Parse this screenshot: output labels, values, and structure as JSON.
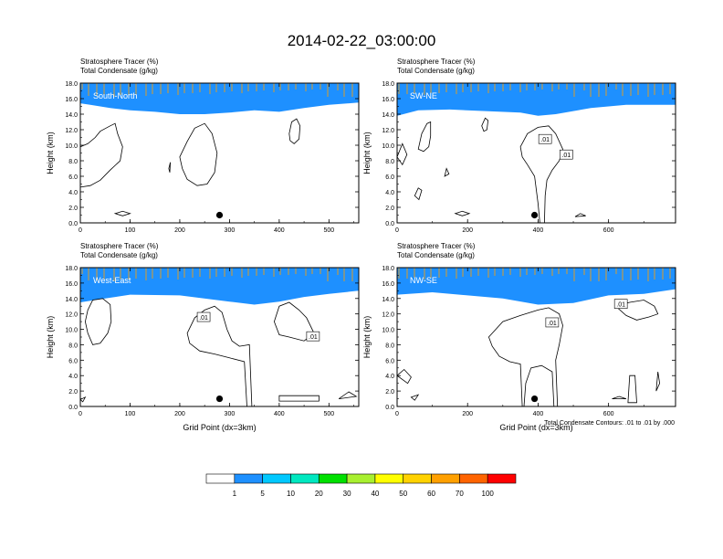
{
  "title": "2014-02-22_03:00:00",
  "colors": {
    "levels": [
      "#ffffff",
      "#1e90ff",
      "#00c8ff",
      "#00e8c0",
      "#00e000",
      "#a8f030",
      "#ffff00",
      "#ffd200",
      "#ffa000",
      "#ff6400",
      "#ff0000"
    ],
    "condensate_contour": "#000000",
    "dot": "#000000"
  },
  "colorbar": {
    "tick_labels": [
      "1",
      "5",
      "10",
      "20",
      "30",
      "40",
      "50",
      "60",
      "70",
      "100"
    ]
  },
  "footnote": "Total Condensate Contours: .01 to .01 by .000",
  "chart_data": [
    {
      "type": "heatmap",
      "panel_label": "South-North",
      "title_lines": [
        "Stratosphere Tracer   (%)",
        "Total Condensate   (g/kg)"
      ],
      "ylabel": "Height (km)",
      "xlabel": "",
      "ylim": [
        0,
        18
      ],
      "yticks": [
        "0.0",
        "2.0",
        "4.0",
        "6.0",
        "8.0",
        "10.0",
        "12.0",
        "14.0",
        "16.0",
        "18.0"
      ],
      "xlim": [
        0,
        560
      ],
      "xticks": [
        0,
        100,
        200,
        300,
        400,
        500
      ],
      "marker_x": 280,
      "contour_labels": [],
      "tracer_base_km": [
        [
          0,
          15.4
        ],
        [
          20,
          15.2
        ],
        [
          60,
          14.8
        ],
        [
          100,
          14.5
        ],
        [
          150,
          14.3
        ],
        [
          200,
          14.0
        ],
        [
          250,
          14.0
        ],
        [
          300,
          14.2
        ],
        [
          350,
          14.5
        ],
        [
          400,
          14.3
        ],
        [
          450,
          14.8
        ],
        [
          500,
          15.2
        ],
        [
          560,
          15.5
        ]
      ]
    },
    {
      "type": "heatmap",
      "panel_label": "SW-NE",
      "title_lines": [
        "Stratosphere Tracer   (%)",
        "Total Condensate   (g/kg)"
      ],
      "ylabel": "Height (km)",
      "xlabel": "",
      "ylim": [
        0,
        18
      ],
      "yticks": [
        "0.0",
        "2.0",
        "4.0",
        "6.0",
        "8.0",
        "10.0",
        "12.0",
        "14.0",
        "16.0",
        "18.0"
      ],
      "xlim": [
        0,
        790
      ],
      "xticks": [
        0,
        200,
        400,
        600
      ],
      "marker_x": 390,
      "contour_labels": [
        {
          "text": ".01",
          "x": 420,
          "y": 10.8
        },
        {
          "text": ".01",
          "x": 480,
          "y": 8.8
        }
      ],
      "tracer_base_km": [
        [
          0,
          13.8
        ],
        [
          60,
          14.5
        ],
        [
          150,
          14.6
        ],
        [
          250,
          14.4
        ],
        [
          350,
          14.2
        ],
        [
          400,
          13.8
        ],
        [
          450,
          14.0
        ],
        [
          550,
          14.8
        ],
        [
          650,
          15.2
        ],
        [
          790,
          15.2
        ]
      ]
    },
    {
      "type": "heatmap",
      "panel_label": "West-East",
      "title_lines": [
        "Stratosphere Tracer   (%)",
        "Total Condensate   (g/kg)"
      ],
      "ylabel": "Height (km)",
      "xlabel": "Grid Point (dx=3km)",
      "ylim": [
        0,
        18
      ],
      "yticks": [
        "0.0",
        "2.0",
        "4.0",
        "6.0",
        "8.0",
        "10.0",
        "12.0",
        "14.0",
        "16.0",
        "18.0"
      ],
      "xlim": [
        0,
        560
      ],
      "xticks": [
        0,
        100,
        200,
        300,
        400,
        500
      ],
      "marker_x": 280,
      "contour_labels": [
        {
          "text": ".01",
          "x": 248,
          "y": 11.6
        },
        {
          "text": ".01",
          "x": 468,
          "y": 9.1
        }
      ],
      "tracer_base_km": [
        [
          0,
          13.5
        ],
        [
          50,
          14.0
        ],
        [
          100,
          14.5
        ],
        [
          200,
          14.4
        ],
        [
          300,
          13.6
        ],
        [
          350,
          13.2
        ],
        [
          400,
          13.6
        ],
        [
          450,
          14.2
        ],
        [
          500,
          14.6
        ],
        [
          560,
          15.0
        ]
      ]
    },
    {
      "type": "heatmap",
      "panel_label": "NW-SE",
      "title_lines": [
        "Stratosphere Tracer   (%)",
        "Total Condensate   (g/kg)"
      ],
      "ylabel": "Height (km)",
      "xlabel": "Grid Point (dx=3km)",
      "ylim": [
        0,
        18
      ],
      "yticks": [
        "0.0",
        "2.0",
        "4.0",
        "6.0",
        "8.0",
        "10.0",
        "12.0",
        "14.0",
        "16.0",
        "18.0"
      ],
      "xlim": [
        0,
        790
      ],
      "xticks": [
        0,
        200,
        400,
        600
      ],
      "marker_x": 390,
      "contour_labels": [
        {
          "text": ".01",
          "x": 440,
          "y": 10.9
        },
        {
          "text": ".01",
          "x": 635,
          "y": 13.3
        }
      ],
      "tracer_base_km": [
        [
          0,
          14.5
        ],
        [
          100,
          14.8
        ],
        [
          200,
          14.4
        ],
        [
          300,
          14.0
        ],
        [
          400,
          13.2
        ],
        [
          500,
          13.4
        ],
        [
          600,
          14.4
        ],
        [
          700,
          14.6
        ],
        [
          790,
          15.2
        ]
      ]
    }
  ]
}
